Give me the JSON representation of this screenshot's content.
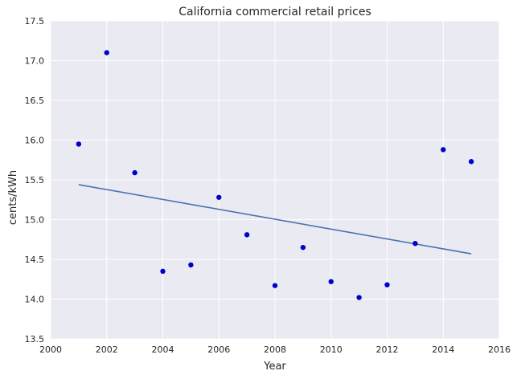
{
  "chart_data": {
    "type": "scatter",
    "title": "California   commercial retail prices",
    "xlabel": "Year",
    "ylabel": "cents/kWh",
    "xlim": [
      2000,
      2016
    ],
    "ylim": [
      13.5,
      17.5
    ],
    "xticks": [
      "2000",
      "2002",
      "2004",
      "2006",
      "2008",
      "2010",
      "2012",
      "2014",
      "2016"
    ],
    "yticks": [
      "13.5",
      "14.0",
      "14.5",
      "15.0",
      "15.5",
      "16.0",
      "16.5",
      "17.0",
      "17.5"
    ],
    "grid": true,
    "series": [
      {
        "type": "scatter",
        "color": "#0000cc",
        "points": [
          {
            "x": 2001,
            "y": 15.95
          },
          {
            "x": 2002,
            "y": 17.1
          },
          {
            "x": 2003,
            "y": 15.59
          },
          {
            "x": 2004,
            "y": 14.35
          },
          {
            "x": 2005,
            "y": 14.43
          },
          {
            "x": 2006,
            "y": 15.28
          },
          {
            "x": 2007,
            "y": 14.81
          },
          {
            "x": 2008,
            "y": 14.17
          },
          {
            "x": 2009,
            "y": 14.65
          },
          {
            "x": 2010,
            "y": 14.22
          },
          {
            "x": 2011,
            "y": 14.02
          },
          {
            "x": 2012,
            "y": 14.18
          },
          {
            "x": 2013,
            "y": 14.7
          },
          {
            "x": 2014,
            "y": 15.88
          },
          {
            "x": 2015,
            "y": 15.73
          }
        ]
      },
      {
        "type": "line",
        "color": "#4c72b0",
        "points": [
          {
            "x": 2001,
            "y": 15.44
          },
          {
            "x": 2015,
            "y": 14.57
          }
        ]
      }
    ]
  }
}
